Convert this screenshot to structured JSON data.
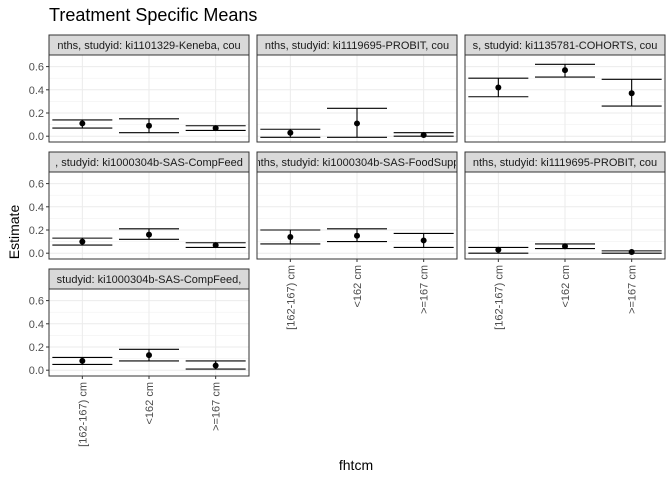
{
  "chart_data": {
    "type": "errorbar",
    "title": "Treatment Specific Means",
    "xlabel": "fhtcm",
    "ylabel": "Estimate",
    "categories": [
      "[162-167) cm",
      "<162 cm",
      ">=167 cm"
    ],
    "ylim": [
      -0.05,
      0.7
    ],
    "yticks": [
      0.0,
      0.2,
      0.4,
      0.6
    ],
    "ytick_labels": [
      "0.0",
      "0.2",
      "0.4",
      "0.6"
    ],
    "grid": true,
    "panels": [
      {
        "strip": "nths, studyid: ki1101329-Keneba, cou",
        "values": [
          0.11,
          0.09,
          0.07
        ],
        "lower": [
          0.07,
          0.03,
          0.05
        ],
        "upper": [
          0.14,
          0.15,
          0.09
        ]
      },
      {
        "strip": "nths, studyid: ki1119695-PROBIT, cou",
        "values": [
          0.03,
          0.11,
          0.01
        ],
        "lower": [
          -0.01,
          -0.01,
          0.0
        ],
        "upper": [
          0.06,
          0.24,
          0.03
        ]
      },
      {
        "strip": "s, studyid: ki1135781-COHORTS, cou",
        "values": [
          0.42,
          0.57,
          0.37
        ],
        "lower": [
          0.34,
          0.51,
          0.26
        ],
        "upper": [
          0.5,
          0.62,
          0.49
        ]
      },
      {
        "strip": ", studyid: ki1000304b-SAS-CompFeed",
        "values": [
          0.1,
          0.16,
          0.07
        ],
        "lower": [
          0.07,
          0.12,
          0.05
        ],
        "upper": [
          0.13,
          0.21,
          0.09
        ]
      },
      {
        "strip": "nths, studyid: ki1000304b-SAS-FoodSupp",
        "values": [
          0.14,
          0.15,
          0.11
        ],
        "lower": [
          0.08,
          0.1,
          0.05
        ],
        "upper": [
          0.2,
          0.21,
          0.17
        ]
      },
      {
        "strip": "nths, studyid: ki1119695-PROBIT, cou",
        "values": [
          0.03,
          0.06,
          0.01
        ],
        "lower": [
          0.0,
          0.04,
          0.0
        ],
        "upper": [
          0.05,
          0.08,
          0.02
        ]
      },
      {
        "strip": "studyid: ki1000304b-SAS-CompFeed,",
        "values": [
          0.08,
          0.13,
          0.04
        ],
        "lower": [
          0.05,
          0.08,
          0.01
        ],
        "upper": [
          0.11,
          0.18,
          0.08
        ]
      }
    ]
  }
}
